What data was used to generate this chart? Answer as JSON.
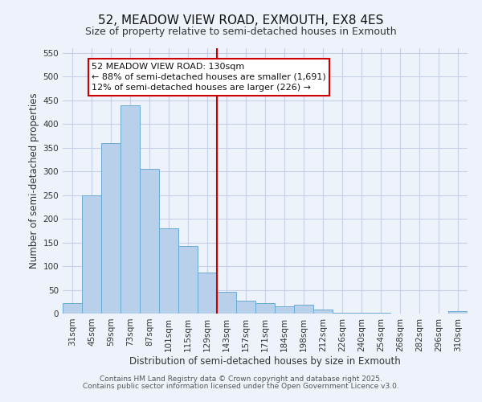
{
  "title": "52, MEADOW VIEW ROAD, EXMOUTH, EX8 4ES",
  "subtitle": "Size of property relative to semi-detached houses in Exmouth",
  "xlabel": "Distribution of semi-detached houses by size in Exmouth",
  "ylabel": "Number of semi-detached properties",
  "categories": [
    "31sqm",
    "45sqm",
    "59sqm",
    "73sqm",
    "87sqm",
    "101sqm",
    "115sqm",
    "129sqm",
    "143sqm",
    "157sqm",
    "171sqm",
    "184sqm",
    "198sqm",
    "212sqm",
    "226sqm",
    "240sqm",
    "254sqm",
    "268sqm",
    "282sqm",
    "296sqm",
    "310sqm"
  ],
  "values": [
    22,
    250,
    360,
    440,
    305,
    180,
    143,
    86,
    46,
    28,
    22,
    16,
    18,
    8,
    2,
    2,
    1,
    0,
    0,
    0,
    5
  ],
  "bar_color": "#b8d0ea",
  "bar_edge_color": "#6aaad4",
  "background_color": "#eef2fb",
  "grid_color": "#c5cfe6",
  "vline_x": 7.5,
  "vline_color": "#cc0000",
  "annotation_line1": "52 MEADOW VIEW ROAD: 130sqm",
  "annotation_line2": "← 88% of semi-detached houses are smaller (1,691)",
  "annotation_line3": "12% of semi-detached houses are larger (226) →",
  "annotation_box_color": "#ffffff",
  "annotation_border_color": "#cc0000",
  "ylim": [
    0,
    560
  ],
  "yticks": [
    0,
    50,
    100,
    150,
    200,
    250,
    300,
    350,
    400,
    450,
    500,
    550
  ],
  "footer_line1": "Contains HM Land Registry data © Crown copyright and database right 2025.",
  "footer_line2": "Contains public sector information licensed under the Open Government Licence v3.0.",
  "title_fontsize": 11,
  "subtitle_fontsize": 9,
  "axis_label_fontsize": 8.5,
  "tick_fontsize": 7.5,
  "annotation_fontsize": 8,
  "footer_fontsize": 6.5
}
